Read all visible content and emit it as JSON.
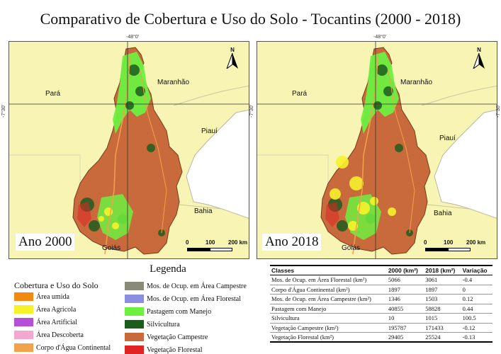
{
  "title": "Comparativo de Cobertura e Uso do Solo - Tocantins (2000 - 2018)",
  "coordinates": {
    "longitude": "-48°0'",
    "latitude": "-7°30'"
  },
  "maps": [
    {
      "year_label": "Ano 2000",
      "states": {
        "para": "Pará",
        "maranhao": "Maranhão",
        "piaui": "Piauí",
        "bahia": "Bahia",
        "goias": "Goiás"
      }
    },
    {
      "year_label": "Ano 2018",
      "states": {
        "para": "Pará",
        "maranhao": "Maranhão",
        "piaui": "Piauí",
        "bahia": "Bahia",
        "goias": "Goiás"
      }
    }
  ],
  "scale_bar": {
    "ticks": [
      "0",
      "100",
      "200 km"
    ]
  },
  "north_arrow": {
    "label": "N"
  },
  "legend": {
    "title": "Legenda",
    "subtitle": "Cobertura e Uso do Solo",
    "items": [
      {
        "label": "Área umida",
        "color": "#f28a10"
      },
      {
        "label": "Área Agricola",
        "color": "#f6f22a"
      },
      {
        "label": "Área Artificial",
        "color": "#b64fd8"
      },
      {
        "label": "Área Descoberta",
        "color": "#f4a7cf"
      },
      {
        "label": "Corpo d'Água Continental",
        "color": "#f2a24a"
      },
      {
        "label": "Mos. de Ocup. em Área Campestre",
        "color": "#8a8a78"
      },
      {
        "label": "Mos. de Ocup. em Área Florestal",
        "color": "#8c8fe0"
      },
      {
        "label": "Pastagem com Manejo",
        "color": "#6ef040"
      },
      {
        "label": "Silvicultura",
        "color": "#1e5c1e"
      },
      {
        "label": "Vegetação Campestre",
        "color": "#c86a3c"
      },
      {
        "label": "Vegetação Florestal",
        "color": "#e02424"
      }
    ]
  },
  "table": {
    "headers": [
      "Classes",
      "2000 (km²)",
      "2018 (km²)",
      "Variação"
    ],
    "rows": [
      [
        "Mos. de Ocup. em Área Florestal (km²)",
        "5066",
        "3061",
        "-0.4"
      ],
      [
        "Corpo d'Água Continental (km²)",
        "1897",
        "1897",
        "0"
      ],
      [
        "Mos. de Ocup. em Área Campestre (km²)",
        "1346",
        "1503",
        "0.12"
      ],
      [
        "Pastagem com Manejo",
        "40855",
        "58828",
        "0.44"
      ],
      [
        "Silvicultura",
        "10",
        "1015",
        "100.5"
      ],
      [
        "Vegetação Campestre (km²)",
        "195787",
        "171433",
        "-0.12"
      ],
      [
        "Vegetação Florestal (km²)",
        "29405",
        "25524",
        "-0.13"
      ]
    ]
  }
}
